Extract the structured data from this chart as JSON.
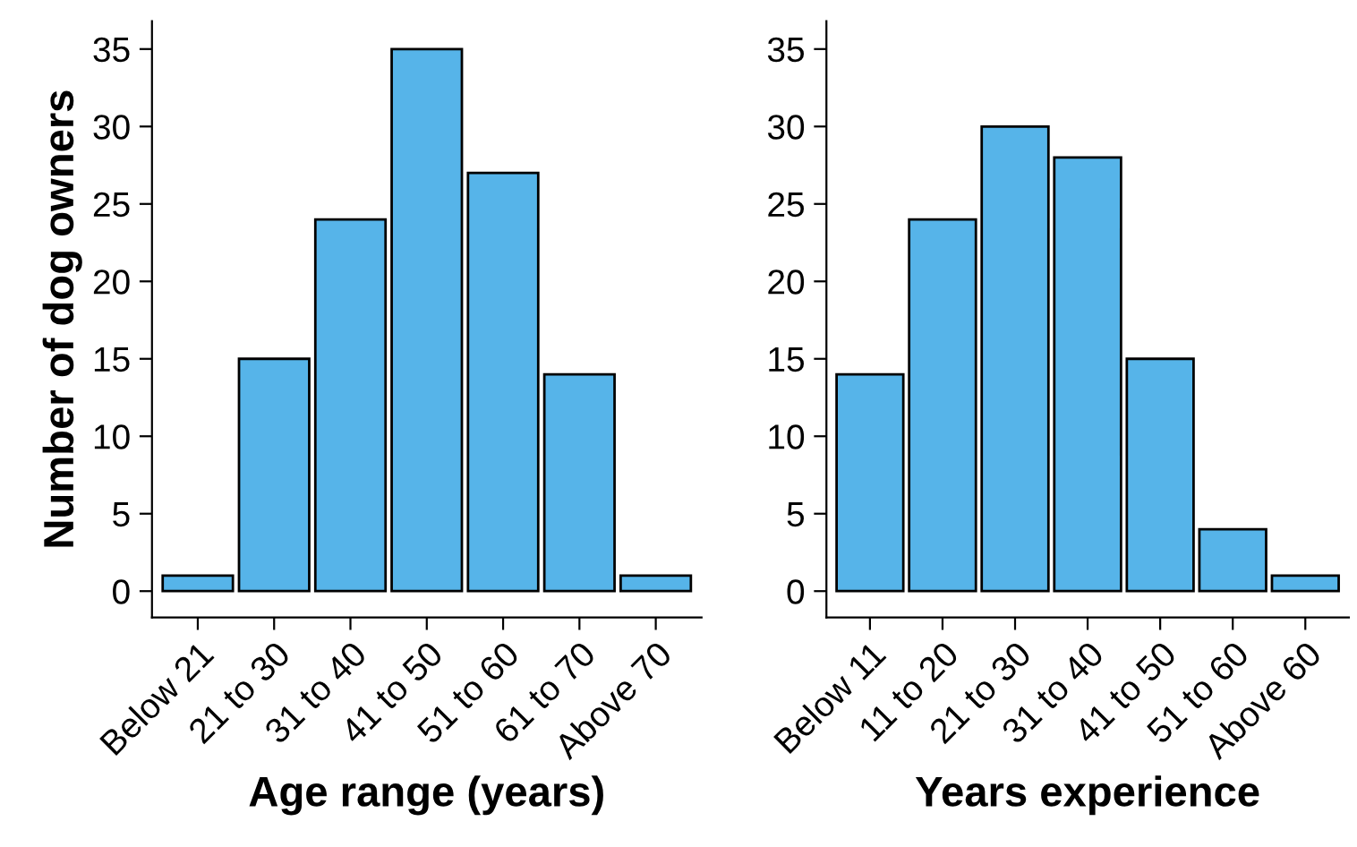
{
  "chart_data": [
    {
      "type": "bar",
      "xlabel": "Age range (years)",
      "ylabel": "Number of dog owners",
      "categories": [
        "Below 21",
        "21 to 30",
        "31 to 40",
        "41 to 50",
        "51 to 60",
        "61 to 70",
        "Above 70"
      ],
      "values": [
        1,
        15,
        24,
        35,
        27,
        14,
        1
      ],
      "color": "#56b4e9",
      "ylim": [
        -1.7,
        36.8
      ],
      "yticks": [
        0,
        5,
        10,
        15,
        20,
        25,
        30,
        35
      ],
      "grid": false,
      "legend": false
    },
    {
      "type": "bar",
      "xlabel": "Years experience",
      "categories": [
        "Below 11",
        "11 to 20",
        "21 to 30",
        "31 to 40",
        "41 to 50",
        "51 to 60",
        "Above 60"
      ],
      "values": [
        14,
        24,
        30,
        28,
        15,
        4,
        1
      ],
      "color": "#56b4e9",
      "ylim": [
        -1.7,
        36.8
      ],
      "yticks": [
        0,
        5,
        10,
        15,
        20,
        25,
        30,
        35
      ],
      "grid": false,
      "legend": false
    }
  ]
}
